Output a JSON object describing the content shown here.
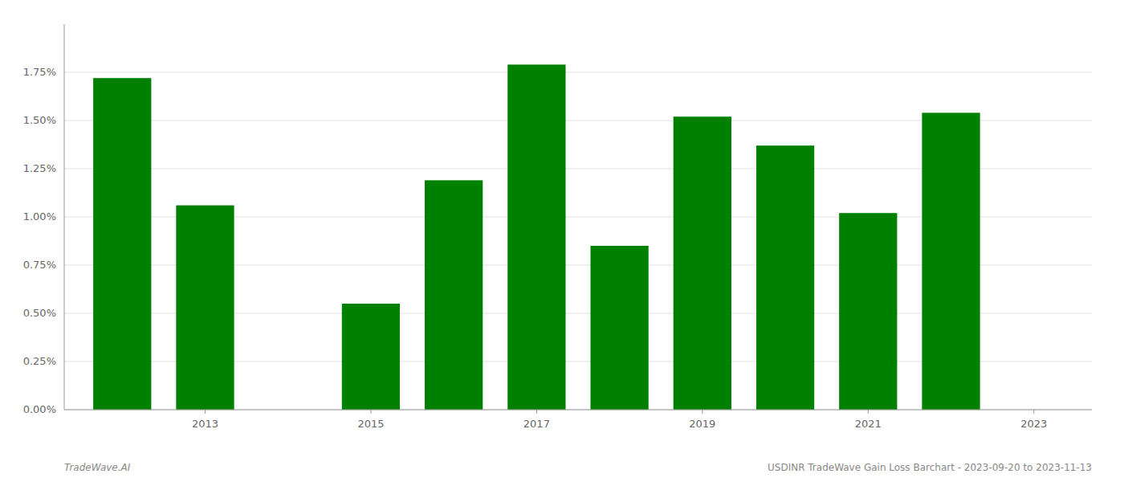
{
  "chart_data": {
    "type": "bar",
    "x": [
      2012,
      2013,
      2015,
      2016,
      2017,
      2018,
      2019,
      2020,
      2021,
      2022
    ],
    "values": [
      0.0172,
      0.0106,
      0.0055,
      0.0119,
      0.0179,
      0.0085,
      0.0152,
      0.0137,
      0.0102,
      0.0154
    ],
    "color": "#008000",
    "xlim": [
      2011.3,
      2023.7
    ],
    "xticks": [
      2013,
      2015,
      2017,
      2019,
      2021,
      2023
    ],
    "ylim": [
      0,
      0.02
    ],
    "yticks": [
      {
        "value": 0.0,
        "label": "0.00%"
      },
      {
        "value": 0.0025,
        "label": "0.25%"
      },
      {
        "value": 0.005,
        "label": "0.50%"
      },
      {
        "value": 0.0075,
        "label": "0.75%"
      },
      {
        "value": 0.01,
        "label": "1.00%"
      },
      {
        "value": 0.0125,
        "label": "1.25%"
      },
      {
        "value": 0.015,
        "label": "1.50%"
      },
      {
        "value": 0.0175,
        "label": "1.75%"
      }
    ],
    "grid": true,
    "annotations": [
      "TradeWave.AI",
      "USDINR TradeWave Gain Loss Barchart - 2023-09-20 to 2023-11-13"
    ]
  }
}
